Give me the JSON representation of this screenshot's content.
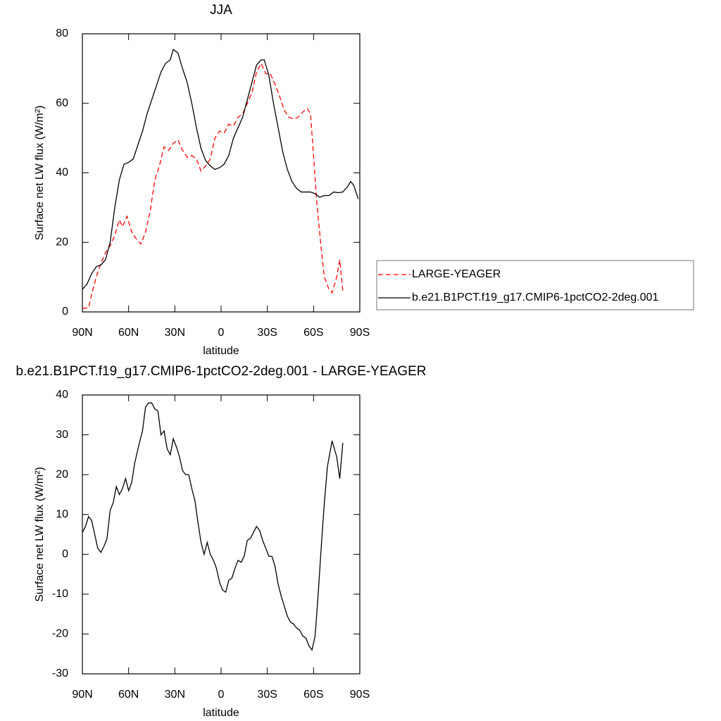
{
  "chart_data": [
    {
      "type": "line",
      "title": "JJA",
      "xlabel": "latitude",
      "ylabel": "Surface net LW flux (W/m²)",
      "xlim": [
        90,
        -90
      ],
      "ylim": [
        0,
        80
      ],
      "xticks": [
        {
          "value": 90,
          "label": "90N"
        },
        {
          "value": 60,
          "label": "60N"
        },
        {
          "value": 30,
          "label": "30N"
        },
        0,
        {
          "value": -30,
          "label": "30S"
        },
        {
          "value": -60,
          "label": "60S"
        },
        {
          "value": -90,
          "label": "90S"
        }
      ],
      "yticks": [
        0,
        20,
        40,
        60,
        80
      ],
      "legend": "right",
      "series": [
        {
          "name": "LARGE-YEAGER",
          "color": "#ff0000",
          "line_style": "dashed",
          "x": [
            90,
            86,
            84,
            81,
            78,
            75,
            72,
            69,
            66,
            64,
            61,
            58,
            55,
            52,
            49,
            46,
            43,
            40,
            37,
            34,
            31,
            28,
            25,
            22,
            19,
            16,
            13,
            10,
            7,
            4,
            1,
            -2,
            -5,
            -8,
            -11,
            -14,
            -17,
            -20,
            -23,
            -26,
            -29,
            -32,
            -35,
            -38,
            -41,
            -44,
            -47,
            -50,
            -53,
            -56,
            -58,
            -60,
            -62,
            -65,
            -67,
            -70,
            -72,
            -75,
            -77,
            -79
          ],
          "values": [
            1,
            1.2,
            5,
            10,
            14,
            17,
            19,
            22,
            26.5,
            24.5,
            27.5,
            23,
            21,
            19.5,
            23,
            29,
            38,
            42,
            47.5,
            46.5,
            48.5,
            49.5,
            46.5,
            44.5,
            45,
            44,
            40.5,
            42,
            44,
            50,
            52,
            51.5,
            54,
            53.5,
            56,
            57,
            60,
            63,
            69,
            71.5,
            68.5,
            68.5,
            65.5,
            62,
            58,
            56,
            55.5,
            56,
            57.5,
            58.5,
            57,
            45,
            32,
            18,
            10,
            6.5,
            5.5,
            10,
            15,
            6
          ]
        },
        {
          "name": "b.e21.B1PCT.f19_g17.CMIP6-1pctCO2-2deg.001",
          "color": "#000000",
          "line_style": "solid",
          "x": [
            90,
            87,
            84,
            81,
            78,
            75,
            72,
            69,
            66,
            63,
            60,
            57,
            54,
            51,
            48,
            45,
            42,
            39,
            36,
            33,
            31,
            28,
            25,
            22,
            19,
            16,
            13,
            10,
            7,
            4,
            1,
            -2,
            -5,
            -8,
            -11,
            -14,
            -17,
            -20,
            -23,
            -26,
            -28,
            -31,
            -34,
            -37,
            -40,
            -43,
            -46,
            -49,
            -52,
            -55,
            -58,
            -61,
            -64,
            -67,
            -70,
            -73,
            -76,
            -79,
            -82,
            -84,
            -86,
            -89
          ],
          "values": [
            6.5,
            8,
            11,
            13,
            13.5,
            15,
            20,
            30,
            38,
            42.5,
            43,
            44,
            48,
            52,
            57,
            61,
            65,
            69,
            71.5,
            72.5,
            75.5,
            74.5,
            70,
            66,
            60,
            53,
            47,
            43.5,
            42,
            41,
            41.5,
            42.5,
            45,
            50,
            53,
            56,
            61,
            66,
            71,
            72.5,
            72.5,
            68,
            60,
            53,
            46,
            41,
            37.5,
            35.5,
            34.5,
            34.5,
            34.5,
            34,
            33,
            33.5,
            33.5,
            34.5,
            34.3,
            34.5,
            36,
            37.5,
            36.5,
            32.5
          ]
        }
      ]
    },
    {
      "type": "line",
      "title": "b.e21.B1PCT.f19_g17.CMIP6-1pctCO2-2deg.001 - LARGE-YEAGER",
      "xlabel": "latitude",
      "ylabel": "Surface net LW flux (W/m²)",
      "xlim": [
        90,
        -90
      ],
      "ylim": [
        -30,
        40
      ],
      "xticks": [
        {
          "value": 90,
          "label": "90N"
        },
        {
          "value": 60,
          "label": "60N"
        },
        {
          "value": 30,
          "label": "30N"
        },
        0,
        {
          "value": -30,
          "label": "30S"
        },
        {
          "value": -60,
          "label": "60S"
        },
        {
          "value": -90,
          "label": "90S"
        }
      ],
      "yticks": [
        -30,
        -20,
        -10,
        0,
        10,
        20,
        30,
        40
      ],
      "series": [
        {
          "color": "#000000",
          "line_style": "solid",
          "x": [
            90,
            88,
            86,
            84,
            82,
            80,
            78,
            76,
            74,
            72,
            70,
            68,
            66,
            64,
            62,
            60,
            58,
            56,
            53,
            51,
            49,
            47,
            45,
            43,
            41,
            39,
            37,
            35,
            33,
            31,
            29,
            27,
            25,
            23,
            21,
            19,
            17,
            15,
            13,
            11,
            9,
            7,
            5,
            3,
            1,
            -1,
            -3,
            -5,
            -7,
            -9,
            -11,
            -13,
            -15,
            -17,
            -19,
            -21,
            -23,
            -25,
            -27,
            -29,
            -31,
            -33,
            -35,
            -37,
            -39,
            -41,
            -43,
            -45,
            -47,
            -49,
            -51,
            -53,
            -55,
            -57,
            -59,
            -61,
            -63,
            -65,
            -67,
            -69,
            -72,
            -75,
            -77,
            -79
          ],
          "values": [
            5.5,
            7,
            9.5,
            8.5,
            5,
            1.5,
            0.5,
            2,
            4,
            11,
            13,
            17,
            15,
            16.5,
            19,
            16,
            18,
            23,
            28,
            31,
            37,
            38,
            38,
            36.5,
            36,
            30,
            31,
            26.5,
            25,
            29,
            27,
            24.5,
            21,
            20,
            20,
            16.5,
            13.5,
            8,
            3,
            0,
            3,
            0,
            -1.5,
            -3.5,
            -7,
            -9,
            -9.5,
            -6.5,
            -6,
            -3.5,
            -1.5,
            -2,
            -0.5,
            3.5,
            4,
            5.5,
            7,
            6,
            3.5,
            1.5,
            -0.5,
            -0.5,
            -3,
            -7.5,
            -10.5,
            -13,
            -15.5,
            -17,
            -17.5,
            -18.5,
            -19,
            -20.5,
            -21,
            -23,
            -24,
            -20.5,
            -10,
            2,
            13,
            22,
            28.5,
            24.5,
            19,
            28
          ]
        }
      ]
    }
  ]
}
